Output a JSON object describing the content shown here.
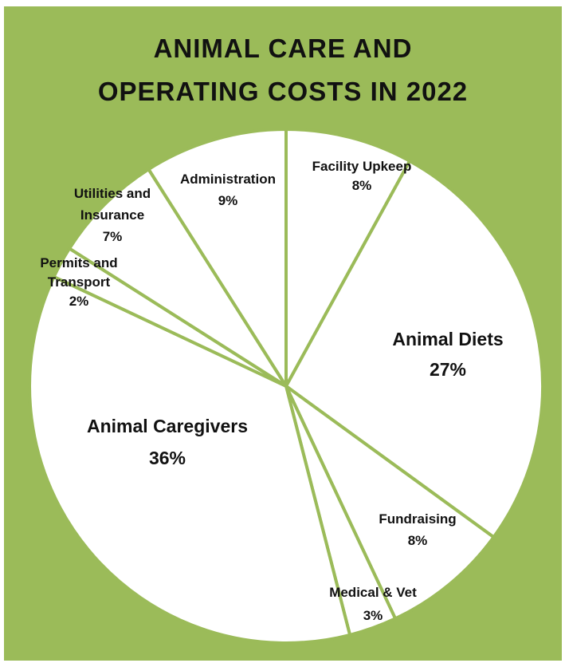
{
  "chart_data": {
    "type": "pie",
    "title_lines": [
      "ANIMAL CARE AND",
      "OPERATING COSTS IN 2022"
    ],
    "start_angle_deg": 0,
    "direction": "clockwise",
    "colors": {
      "background": "#9bbb59",
      "slice_fill": "#ffffff",
      "slice_border": "#9bbb59",
      "text": "#111111"
    },
    "slices": [
      {
        "name": "Facility Upkeep",
        "value": 8,
        "label_lines": [
          "Facility Upkeep"
        ],
        "pct_label": "8%"
      },
      {
        "name": "Animal Diets",
        "value": 27,
        "label_lines": [
          "Animal Diets"
        ],
        "pct_label": "27%"
      },
      {
        "name": "Fundraising",
        "value": 8,
        "label_lines": [
          "Fundraising"
        ],
        "pct_label": "8%"
      },
      {
        "name": "Medical & Vet",
        "value": 3,
        "label_lines": [
          "Medical & Vet"
        ],
        "pct_label": "3%"
      },
      {
        "name": "Animal Caregivers",
        "value": 36,
        "label_lines": [
          "Animal Caregivers"
        ],
        "pct_label": "36%"
      },
      {
        "name": "Permits and Transport",
        "value": 2,
        "label_lines": [
          "Permits and",
          "Transport"
        ],
        "pct_label": "2%"
      },
      {
        "name": "Utilities and Insurance",
        "value": 7,
        "label_lines": [
          "Utilities and",
          "Insurance"
        ],
        "pct_label": "7%"
      },
      {
        "name": "Administration",
        "value": 9,
        "label_lines": [
          "Administration"
        ],
        "pct_label": "9%"
      }
    ]
  }
}
